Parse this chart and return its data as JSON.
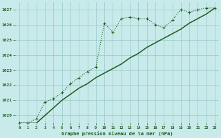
{
  "title": "Graphe pression niveau de la mer (hPa)",
  "bg_color": "#c8eaea",
  "grid_color": "#a0cece",
  "line_color": "#1a5c1a",
  "x_values": [
    0,
    1,
    2,
    3,
    4,
    5,
    6,
    7,
    8,
    9,
    10,
    11,
    12,
    13,
    14,
    15,
    16,
    17,
    18,
    19,
    20,
    21,
    22,
    23
  ],
  "series1": [
    1019.5,
    1019.5,
    1019.8,
    1020.9,
    1021.1,
    1021.5,
    1022.1,
    1022.5,
    1022.9,
    1023.2,
    1026.1,
    1025.5,
    1026.4,
    1026.5,
    1026.4,
    1026.4,
    1026.0,
    1025.8,
    1026.3,
    1027.0,
    1026.8,
    1027.0,
    1027.1,
    1027.1
  ],
  "series2": [
    1019.5,
    1019.5,
    1019.5,
    1020.0,
    1020.5,
    1021.0,
    1021.4,
    1021.8,
    1022.1,
    1022.5,
    1022.8,
    1023.1,
    1023.4,
    1023.8,
    1024.1,
    1024.5,
    1024.8,
    1025.1,
    1025.4,
    1025.7,
    1026.1,
    1026.4,
    1026.7,
    1027.1
  ],
  "ylim": [
    1019.5,
    1027.5
  ],
  "yticks": [
    1020,
    1021,
    1022,
    1023,
    1024,
    1025,
    1026,
    1027
  ],
  "xlim": [
    -0.5,
    23.5
  ],
  "xticks": [
    0,
    1,
    2,
    3,
    4,
    5,
    6,
    7,
    8,
    9,
    10,
    11,
    12,
    13,
    14,
    15,
    16,
    17,
    18,
    19,
    20,
    21,
    22,
    23
  ]
}
